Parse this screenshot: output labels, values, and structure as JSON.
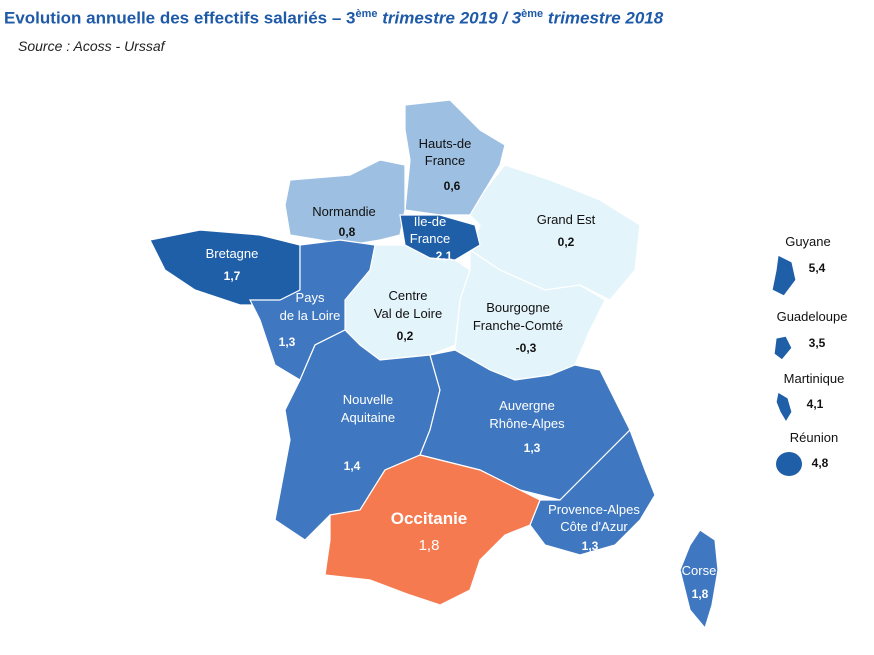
{
  "header": {
    "title_parts": [
      "Evolution annuelle des effectifs salariés – 3",
      "ème",
      " trimestre 2019 / 3",
      "ème",
      " trimestre 2018"
    ],
    "source": "Source : Acoss - Urssaf"
  },
  "regions": [
    {
      "name": [
        "Hauts-de",
        "France"
      ],
      "value": "0,6"
    },
    {
      "name": [
        "Normandie"
      ],
      "value": "0,8"
    },
    {
      "name": [
        "Ile-de",
        "France"
      ],
      "value": "2,1"
    },
    {
      "name": [
        "Grand Est"
      ],
      "value": "0,2"
    },
    {
      "name": [
        "Bretagne"
      ],
      "value": "1,7"
    },
    {
      "name": [
        "Pays",
        "de la Loire"
      ],
      "value": "1,3"
    },
    {
      "name": [
        "Centre",
        "Val de Loire"
      ],
      "value": "0,2"
    },
    {
      "name": [
        "Bourgogne",
        "Franche-Comté"
      ],
      "value": "-0,3"
    },
    {
      "name": [
        "Nouvelle",
        "Aquitaine"
      ],
      "value": "1,4"
    },
    {
      "name": [
        "Auvergne",
        "Rhône-Alpes"
      ],
      "value": "1,3"
    },
    {
      "name": [
        "Occitanie"
      ],
      "value": "1,8"
    },
    {
      "name": [
        "Provence-Alpes",
        "Côte d'Azur"
      ],
      "value": "1,3"
    },
    {
      "name": [
        "Corse"
      ],
      "value": "1,8"
    }
  ],
  "overseas": [
    {
      "name": "Guyane",
      "value": "5,4"
    },
    {
      "name": "Guadeloupe",
      "value": "3,5"
    },
    {
      "name": "Martinique",
      "value": "4,1"
    },
    {
      "name": "Réunion",
      "value": "4,8"
    }
  ]
}
